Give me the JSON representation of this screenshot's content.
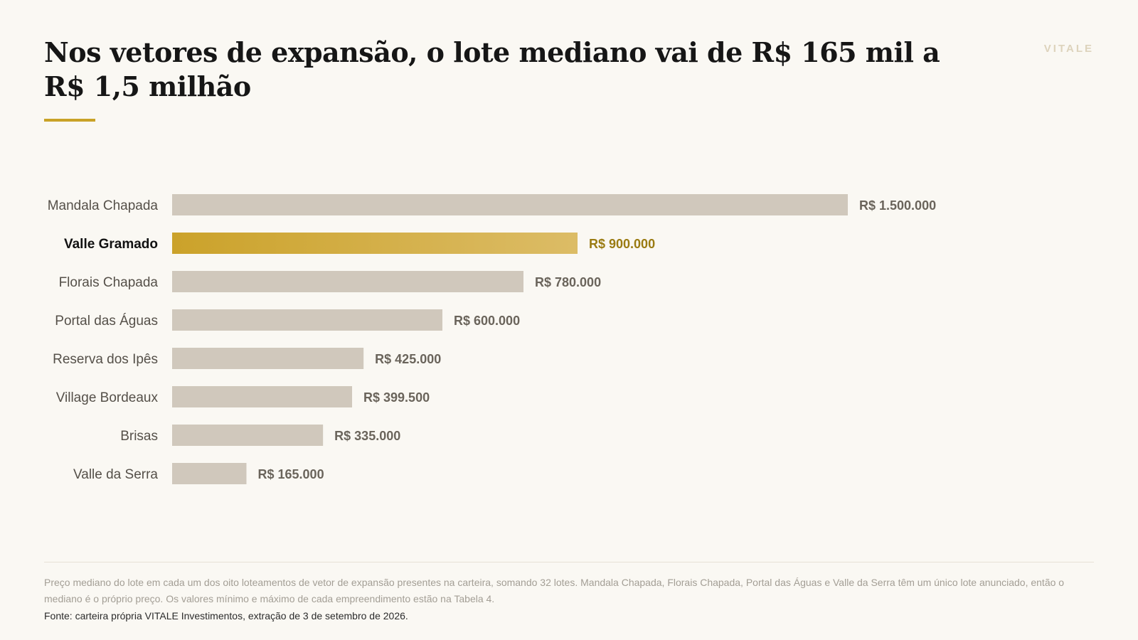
{
  "header": {
    "title": "Nos vetores de expansão, o lote mediano vai de R$ 165 mil a R$ 1,5 milhão",
    "brand": "VITALE"
  },
  "footer": {
    "note": "Preço mediano do lote em cada um dos oito loteamentos de vetor de expansão presentes na carteira, somando 32 lotes. Mandala Chapada, Florais Chapada, Portal das Águas e Valle da Serra têm um único lote anunciado, então o mediano é o próprio preço. Os valores mínimo e máximo de cada empreendimento estão na Tabela 4.",
    "source": "Fonte: carteira própria VITALE Investimentos, extração de 3 de setembro de 2026."
  },
  "chart_data": {
    "type": "bar",
    "orientation": "horizontal",
    "title": "Nos vetores de expansão, o lote mediano vai de R$ 165 mil a R$ 1,5 milhão",
    "categories": [
      "Mandala Chapada",
      "Valle Gramado",
      "Florais Chapada",
      "Portal das Águas",
      "Reserva dos Ipês",
      "Village Bordeaux",
      "Brisas",
      "Valle da Serra"
    ],
    "values": [
      1500000,
      900000,
      780000,
      600000,
      425000,
      399500,
      335000,
      165000
    ],
    "value_labels": [
      "R$ 1.500.000",
      "R$ 900.000",
      "R$ 780.000",
      "R$ 600.000",
      "R$ 425.000",
      "R$ 399.500",
      "R$ 335.000",
      "R$ 165.000"
    ],
    "highlight": "Valle Gramado",
    "xlim": [
      0,
      1500000
    ],
    "grid": false,
    "colors": {
      "bar": "#d0c8bc",
      "highlight_start": "#cba22a",
      "highlight_end": "#dcbc66",
      "highlight_label": "#9a7b12"
    }
  }
}
